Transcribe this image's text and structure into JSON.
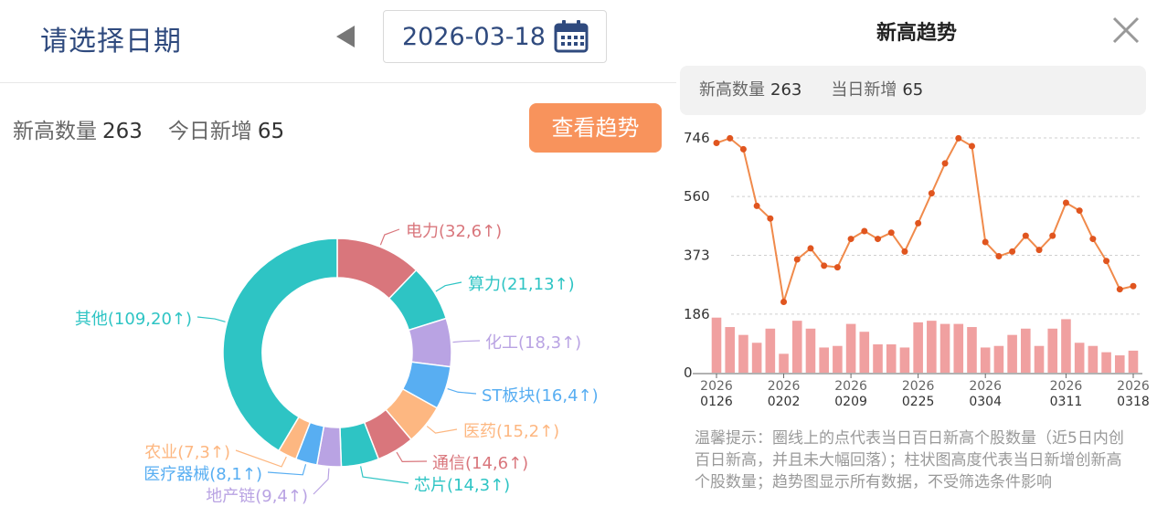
{
  "header": {
    "title": "请选择日期",
    "date": "2026-03-18"
  },
  "stats": {
    "new_high_label": "新高数量",
    "new_high_value": "263",
    "today_new_label": "今日新增",
    "today_new_value": "65"
  },
  "trend_button": {
    "label": "查看趋势"
  },
  "donut": {
    "segments": [
      {
        "label": "电力(32,6↑)",
        "value": 32,
        "color": "#d9767c"
      },
      {
        "label": "算力(21,13↑)",
        "value": 21,
        "color": "#2ec4c4"
      },
      {
        "label": "化工(18,3↑)",
        "value": 18,
        "color": "#b9a3e3"
      },
      {
        "label": "ST板块(16,4↑)",
        "value": 16,
        "color": "#58aef2"
      },
      {
        "label": "医药(15,2↑)",
        "value": 15,
        "color": "#fdb781"
      },
      {
        "label": "通信(14,6↑)",
        "value": 14,
        "color": "#d9767c"
      },
      {
        "label": "芯片(14,3↑)",
        "value": 14,
        "color": "#2ec4c4"
      },
      {
        "label": "地产链(9,4↑)",
        "value": 9,
        "color": "#b9a3e3"
      },
      {
        "label": "医疗器械(8,1↑)",
        "value": 8,
        "color": "#58aef2"
      },
      {
        "label": "农业(7,3↑)",
        "value": 7,
        "color": "#fdb781"
      },
      {
        "label": "其他(109,20↑)",
        "value": 109,
        "color": "#2ec4c4"
      }
    ]
  },
  "modal": {
    "title": "新高趋势",
    "stats_new_high_label": "新高数量",
    "stats_new_high_value": "263",
    "stats_today_label": "当日新增",
    "stats_today_value": "65",
    "tip": "温馨提示：圈线上的点代表当日百日新高个股数量（近5日内创百日新高，并且未大幅回落）；柱状图高度代表当日新增创新高个股数量；趋势图显示所有数据，不受筛选条件影响"
  },
  "chart_data": {
    "type": "line",
    "title": "",
    "y_ticks": [
      "746",
      "560",
      "373",
      "186",
      "0"
    ],
    "x_tick_labels": [
      {
        "year": "2026",
        "date": "0126"
      },
      {
        "year": "2026",
        "date": "0202"
      },
      {
        "year": "2026",
        "date": "0209"
      },
      {
        "year": "2026",
        "date": "0225"
      },
      {
        "year": "2026",
        "date": "0304"
      },
      {
        "year": "2026",
        "date": "0311"
      },
      {
        "year": "2026",
        "date": "0318"
      }
    ],
    "ylim": [
      0,
      746
    ],
    "series": [
      {
        "type": "line",
        "values": [
          730,
          745,
          710,
          530,
          490,
          225,
          360,
          395,
          340,
          335,
          425,
          450,
          425,
          445,
          385,
          475,
          570,
          665,
          745,
          720,
          415,
          370,
          385,
          435,
          390,
          435,
          540,
          515,
          425,
          355,
          265,
          275
        ],
        "color": "#f08a4b"
      },
      {
        "type": "bar",
        "values": [
          175,
          145,
          120,
          95,
          140,
          60,
          165,
          140,
          80,
          85,
          155,
          130,
          90,
          90,
          80,
          160,
          165,
          155,
          155,
          145,
          80,
          85,
          120,
          140,
          85,
          140,
          170,
          95,
          85,
          65,
          55,
          70
        ],
        "color": "#f0a0a0"
      }
    ]
  },
  "colors": {
    "accent": "#f8935c",
    "title_blue": "#2f4a7e"
  },
  "icons": {
    "prev": "triangle-left-icon",
    "calendar": "calendar-icon",
    "close": "close-icon"
  }
}
